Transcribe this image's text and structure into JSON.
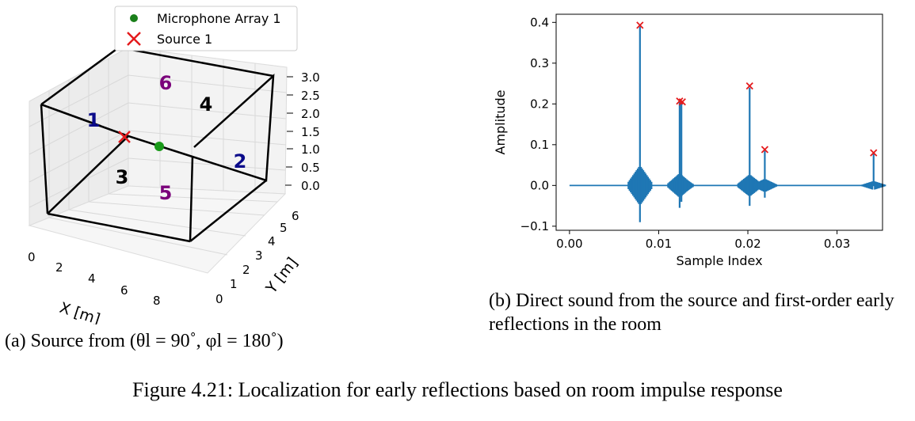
{
  "figure": {
    "caption": "Figure 4.21: Localization for early reflections based on room impulse response"
  },
  "panel_a": {
    "caption": "(a) Source from (θl = 90˚, φl = 180˚)",
    "legend": {
      "mic_label": "Microphone Array 1",
      "source_label": "Source 1"
    },
    "x_axis_label": "X [m]",
    "y_axis_label": "Y [m]",
    "x_ticks": [
      "0",
      "2",
      "4",
      "6",
      "8"
    ],
    "y_ticks": [
      "0",
      "1",
      "2",
      "3",
      "4",
      "5",
      "6"
    ],
    "z_ticks": [
      "3.0",
      "2.5",
      "2.0",
      "1.5",
      "1.0",
      "0.5",
      "0.0"
    ],
    "wall_labels": [
      "1",
      "2",
      "3",
      "4",
      "5",
      "6"
    ],
    "colors": {
      "mic": "#1a7f1a",
      "source": "#e41a1c",
      "walls_blue": "#0a0a8a",
      "walls_purple": "#7a007a"
    }
  },
  "panel_b": {
    "caption": "(b) Direct sound from the source and first-order early reflections in the room",
    "chart_data": {
      "type": "line",
      "xlabel": "Sample Index",
      "ylabel": "Amplitude",
      "xlim": [
        -0.0015,
        0.0351
      ],
      "ylim": [
        -0.11,
        0.42
      ],
      "x_ticks": [
        "0.00",
        "0.01",
        "0.02",
        "0.03"
      ],
      "y_ticks": [
        "0.4",
        "0.3",
        "0.2",
        "0.1",
        "0.0",
        "−0.1"
      ],
      "series": [
        {
          "peaks": [
            {
              "x": 0.0079,
              "y": 0.39,
              "min": -0.09
            },
            {
              "x": 0.01235,
              "y": 0.205,
              "min": -0.055
            },
            {
              "x": 0.01255,
              "y": 0.205,
              "min": -0.04
            },
            {
              "x": 0.0202,
              "y": 0.24,
              "min": -0.05
            },
            {
              "x": 0.0219,
              "y": 0.085,
              "min": -0.03
            },
            {
              "x": 0.0341,
              "y": 0.078,
              "min": 0.0
            }
          ]
        }
      ],
      "markers": [
        {
          "x": 0.0079,
          "y": 0.393
        },
        {
          "x": 0.01235,
          "y": 0.207
        },
        {
          "x": 0.01265,
          "y": 0.205
        },
        {
          "x": 0.0202,
          "y": 0.244
        },
        {
          "x": 0.0219,
          "y": 0.088
        },
        {
          "x": 0.0341,
          "y": 0.08
        }
      ],
      "colors": {
        "line": "#1f77b4",
        "marker": "#e41a1c"
      },
      "grid": false
    }
  }
}
